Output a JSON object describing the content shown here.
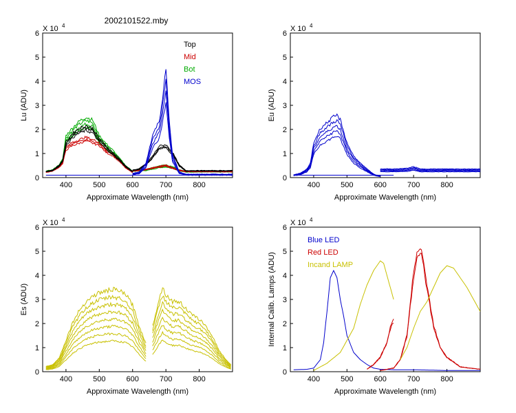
{
  "figure_title": "2002101522.mby",
  "colors": {
    "black": "#000000",
    "red": "#cc0000",
    "green": "#00aa00",
    "blue": "#0000cc",
    "olive": "#c8c000"
  },
  "chart_data": [
    {
      "id": "lu",
      "type": "line",
      "ylabel": "Lu (ADU)",
      "xlabel": "Approximate Wavelength (nm)",
      "exponent_label": "X 10",
      "exponent": "4",
      "xlim": [
        330,
        900
      ],
      "ylim": [
        0,
        6
      ],
      "xticks": [
        400,
        500,
        600,
        700,
        800
      ],
      "yticks": [
        0,
        1,
        2,
        3,
        4,
        5,
        6
      ],
      "legend_position": "top-right",
      "legend": [
        {
          "label": "Top",
          "color": "#000000"
        },
        {
          "label": "Mid",
          "color": "#cc0000"
        },
        {
          "label": "Bot",
          "color": "#00aa00"
        },
        {
          "label": "MOS",
          "color": "#0000cc"
        }
      ],
      "series": [
        {
          "name": "Bot",
          "color": "#00aa00",
          "count": 4,
          "spread": 0.06,
          "segments": [
            {
              "x": [
                340,
                360,
                380,
                390,
                400,
                420,
                440,
                460,
                480,
                500,
                520,
                540,
                560,
                580,
                600
              ],
              "y": [
                0.25,
                0.3,
                0.5,
                0.7,
                1.6,
                1.9,
                2.15,
                2.3,
                2.2,
                1.6,
                1.3,
                1.05,
                0.75,
                0.45,
                0.25
              ]
            },
            {
              "x": [
                600,
                640,
                660,
                680,
                700,
                720,
                740,
                760,
                900
              ],
              "y": [
                0.28,
                0.32,
                0.38,
                0.45,
                0.48,
                0.42,
                0.3,
                0.25,
                0.25
              ]
            }
          ]
        },
        {
          "name": "Mid",
          "color": "#cc0000",
          "count": 3,
          "spread": 0.05,
          "segments": [
            {
              "x": [
                340,
                360,
                380,
                390,
                400,
                420,
                440,
                460,
                480,
                500,
                520,
                540,
                560,
                580,
                600
              ],
              "y": [
                0.22,
                0.28,
                0.45,
                0.6,
                1.2,
                1.4,
                1.5,
                1.6,
                1.5,
                1.4,
                1.1,
                0.95,
                0.7,
                0.4,
                0.22
              ]
            },
            {
              "x": [
                600,
                640,
                660,
                680,
                700,
                720,
                740,
                760,
                900
              ],
              "y": [
                0.28,
                0.33,
                0.4,
                0.45,
                0.5,
                0.4,
                0.3,
                0.25,
                0.25
              ]
            }
          ]
        },
        {
          "name": "Top",
          "color": "#000000",
          "count": 3,
          "spread": 0.05,
          "segments": [
            {
              "x": [
                340,
                360,
                380,
                390,
                400,
                420,
                440,
                460,
                480,
                500,
                520,
                540,
                560,
                580,
                600
              ],
              "y": [
                0.25,
                0.3,
                0.5,
                0.7,
                1.4,
                1.75,
                1.95,
                2.05,
                1.95,
                1.55,
                1.25,
                1.0,
                0.75,
                0.45,
                0.25
              ]
            },
            {
              "x": [
                600,
                620,
                640,
                660,
                680,
                700,
                720,
                740,
                760,
                900
              ],
              "y": [
                0.3,
                0.35,
                0.55,
                0.85,
                1.25,
                1.3,
                1.0,
                0.5,
                0.28,
                0.28
              ]
            }
          ]
        },
        {
          "name": "MOS",
          "color": "#0000cc",
          "count": 4,
          "spread": 0.12,
          "segments": [
            {
              "x": [
                600,
                620,
                640,
                660,
                680,
                690,
                700,
                710,
                720,
                740,
                760,
                900
              ],
              "y": [
                0.15,
                0.2,
                0.5,
                1.5,
                2.0,
                2.8,
                3.8,
                2.0,
                0.8,
                0.2,
                0.12,
                0.12
              ]
            }
          ]
        },
        {
          "name": "baseline",
          "color": "#0000cc",
          "count": 1,
          "spread": 0,
          "segments": [
            {
              "x": [
                340,
                900
              ],
              "y": [
                0.1,
                0.1
              ]
            }
          ]
        }
      ]
    },
    {
      "id": "eu",
      "type": "line",
      "ylabel": "Eu  (ADU)",
      "xlabel": "Approximate Wavelength (nm)",
      "exponent_label": "X 10",
      "exponent": "4",
      "xlim": [
        330,
        900
      ],
      "ylim": [
        0,
        6
      ],
      "xticks": [
        400,
        500,
        600,
        700,
        800
      ],
      "yticks": [
        0,
        1,
        2,
        3,
        4,
        5,
        6
      ],
      "series": [
        {
          "name": "Eu",
          "color": "#0000cc",
          "count": 5,
          "spread": 0.1,
          "segments": [
            {
              "x": [
                340,
                360,
                380,
                390,
                400,
                420,
                440,
                460,
                470,
                480,
                500,
                520,
                540,
                560,
                580,
                600
              ],
              "y": [
                0.1,
                0.15,
                0.3,
                0.5,
                1.2,
                1.7,
                1.9,
                2.1,
                2.15,
                2.0,
                1.2,
                0.75,
                0.5,
                0.3,
                0.12,
                0.05
              ]
            },
            {
              "x": [
                600,
                640,
                680,
                700,
                720,
                760,
                800,
                900
              ],
              "y": [
                0.3,
                0.3,
                0.32,
                0.38,
                0.3,
                0.3,
                0.3,
                0.3
              ]
            }
          ]
        },
        {
          "name": "baseline",
          "color": "#0000cc",
          "count": 1,
          "spread": 0,
          "segments": [
            {
              "x": [
                340,
                640
              ],
              "y": [
                0.1,
                0.1
              ]
            }
          ]
        }
      ]
    },
    {
      "id": "es",
      "type": "line",
      "ylabel": "Es  (ADU)",
      "xlabel": "Approximate Wavelength (nm)",
      "exponent_label": "X 10",
      "exponent": "4",
      "xlim": [
        330,
        900
      ],
      "ylim": [
        0,
        6
      ],
      "xticks": [
        400,
        500,
        600,
        700,
        800
      ],
      "yticks": [
        0,
        1,
        2,
        3,
        4,
        5,
        6
      ],
      "series": [
        {
          "name": "Es",
          "color": "#c8c000",
          "count": 8,
          "spread": 0.13,
          "segments": [
            {
              "x": [
                340,
                360,
                380,
                400,
                420,
                440,
                460,
                480,
                500,
                520,
                540,
                560,
                580,
                600,
                620,
                640
              ],
              "y": [
                0.15,
                0.2,
                0.4,
                0.9,
                1.4,
                1.75,
                2.0,
                2.15,
                2.25,
                2.3,
                2.35,
                2.3,
                2.2,
                1.9,
                1.3,
                0.8
              ]
            },
            {
              "x": [
                660,
                680,
                690,
                700,
                720,
                740,
                760,
                780,
                800,
                820,
                840,
                860,
                880,
                895
              ],
              "y": [
                1.3,
                2.1,
                2.4,
                2.2,
                2.0,
                2.0,
                1.8,
                1.6,
                1.5,
                1.3,
                1.0,
                0.6,
                0.35,
                0.2
              ]
            }
          ]
        }
      ]
    },
    {
      "id": "cal",
      "type": "line",
      "ylabel": "Internal Calib. Lamps (ADU)",
      "xlabel": "Approximate Wavelength (nm)",
      "exponent_label": "X 10",
      "exponent": "4",
      "xlim": [
        330,
        900
      ],
      "ylim": [
        0,
        6
      ],
      "xticks": [
        400,
        500,
        600,
        700,
        800
      ],
      "yticks": [
        0,
        1,
        2,
        3,
        4,
        5,
        6
      ],
      "legend_position": "top-left",
      "legend": [
        {
          "label": "Blue LED",
          "color": "#0000cc"
        },
        {
          "label": "Red LED",
          "color": "#cc0000"
        },
        {
          "label": "Incand LAMP",
          "color": "#c8c000"
        }
      ],
      "series": [
        {
          "name": "Blue LED",
          "color": "#0000cc",
          "count": 1,
          "spread": 0,
          "segments": [
            {
              "x": [
                340,
                380,
                400,
                420,
                430,
                440,
                450,
                460,
                470,
                480,
                490,
                500,
                520,
                540,
                560,
                580,
                600,
                640,
                700,
                800,
                900
              ],
              "y": [
                0.08,
                0.1,
                0.15,
                0.5,
                1.2,
                2.5,
                3.9,
                4.2,
                3.9,
                3.0,
                2.3,
                1.5,
                0.8,
                0.5,
                0.3,
                0.15,
                0.1,
                0.08,
                0.08,
                0.05,
                0.05
              ]
            }
          ]
        },
        {
          "name": "Red LED",
          "color": "#cc0000",
          "count": 2,
          "spread": 0.05,
          "segments": [
            {
              "x": [
                560,
                580,
                600,
                620,
                630,
                640
              ],
              "y": [
                0.1,
                0.3,
                0.6,
                1.2,
                1.8,
                2.1
              ]
            },
            {
              "x": [
                600,
                640,
                660,
                680,
                690,
                700,
                710,
                720,
                730,
                740,
                760,
                780,
                800,
                840,
                900
              ],
              "y": [
                0.05,
                0.15,
                0.5,
                1.5,
                2.8,
                4.0,
                4.9,
                5.1,
                4.5,
                3.5,
                1.9,
                1.0,
                0.6,
                0.2,
                0.1
              ]
            }
          ]
        },
        {
          "name": "Incand LAMP",
          "color": "#c8c000",
          "count": 1,
          "spread": 0,
          "segments": [
            {
              "x": [
                400,
                440,
                480,
                500,
                520,
                540,
                560,
                580,
                600,
                610,
                620,
                630,
                640
              ],
              "y": [
                0.05,
                0.35,
                0.8,
                1.3,
                1.8,
                2.8,
                3.6,
                4.2,
                4.6,
                4.5,
                4.0,
                3.5,
                3.0
              ]
            },
            {
              "x": [
                660,
                680,
                700,
                720,
                740,
                760,
                780,
                800,
                820,
                840,
                860,
                880,
                900
              ],
              "y": [
                0.5,
                1.0,
                1.8,
                2.5,
                2.9,
                3.5,
                4.1,
                4.4,
                4.3,
                3.9,
                3.5,
                3.0,
                2.5
              ]
            }
          ]
        }
      ]
    }
  ]
}
